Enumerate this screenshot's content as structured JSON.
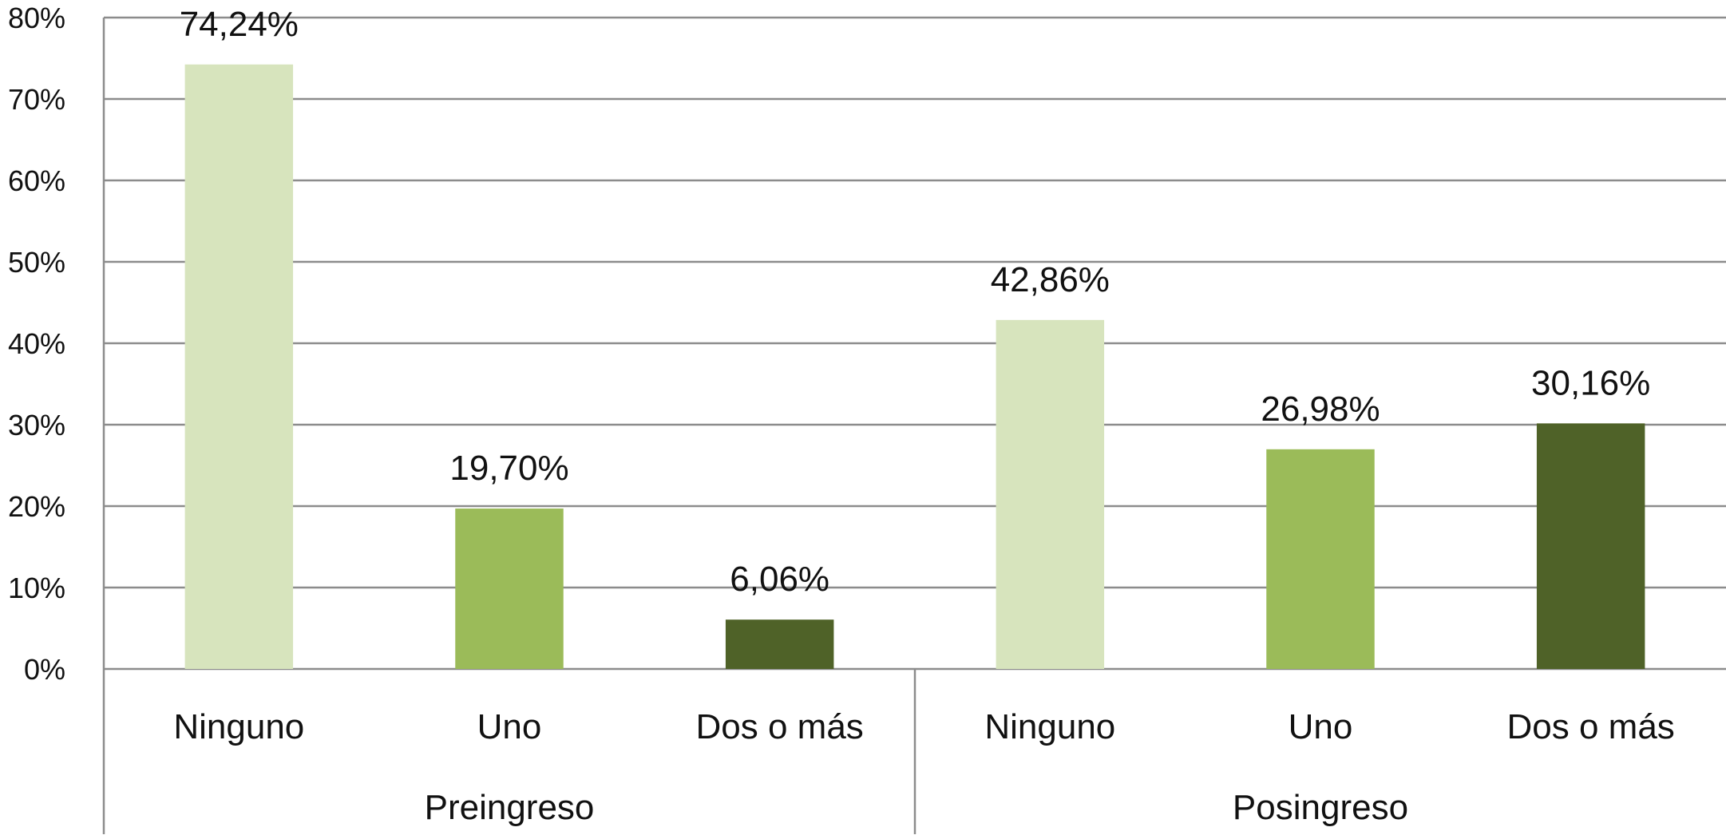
{
  "chart_data": {
    "type": "bar",
    "title": "",
    "xlabel": "",
    "ylabel": "",
    "ylim": [
      0,
      80
    ],
    "yticks": [
      0,
      10,
      20,
      30,
      40,
      50,
      60,
      70,
      80
    ],
    "ytick_labels": [
      "0%",
      "10%",
      "20%",
      "30%",
      "40%",
      "50%",
      "60%",
      "70%",
      "80%"
    ],
    "grid": true,
    "legend": "none",
    "groups": [
      {
        "label": "Preingreso",
        "bars": [
          {
            "category": "Ninguno",
            "value": 74.24,
            "label": "74,24%",
            "color": "#d7e4bd"
          },
          {
            "category": "Uno",
            "value": 19.7,
            "label": "19,70%",
            "color": "#9bbb59"
          },
          {
            "category": "Dos o más",
            "value": 6.06,
            "label": "6,06%",
            "color": "#4f6228"
          }
        ]
      },
      {
        "label": "Posingreso",
        "bars": [
          {
            "category": "Ninguno",
            "value": 42.86,
            "label": "42,86%",
            "color": "#d7e4bd"
          },
          {
            "category": "Uno",
            "value": 26.98,
            "label": "26,98%",
            "color": "#9bbb59"
          },
          {
            "category": "Dos o más",
            "value": 30.16,
            "label": "30,16%",
            "color": "#4f6228"
          }
        ]
      }
    ]
  }
}
